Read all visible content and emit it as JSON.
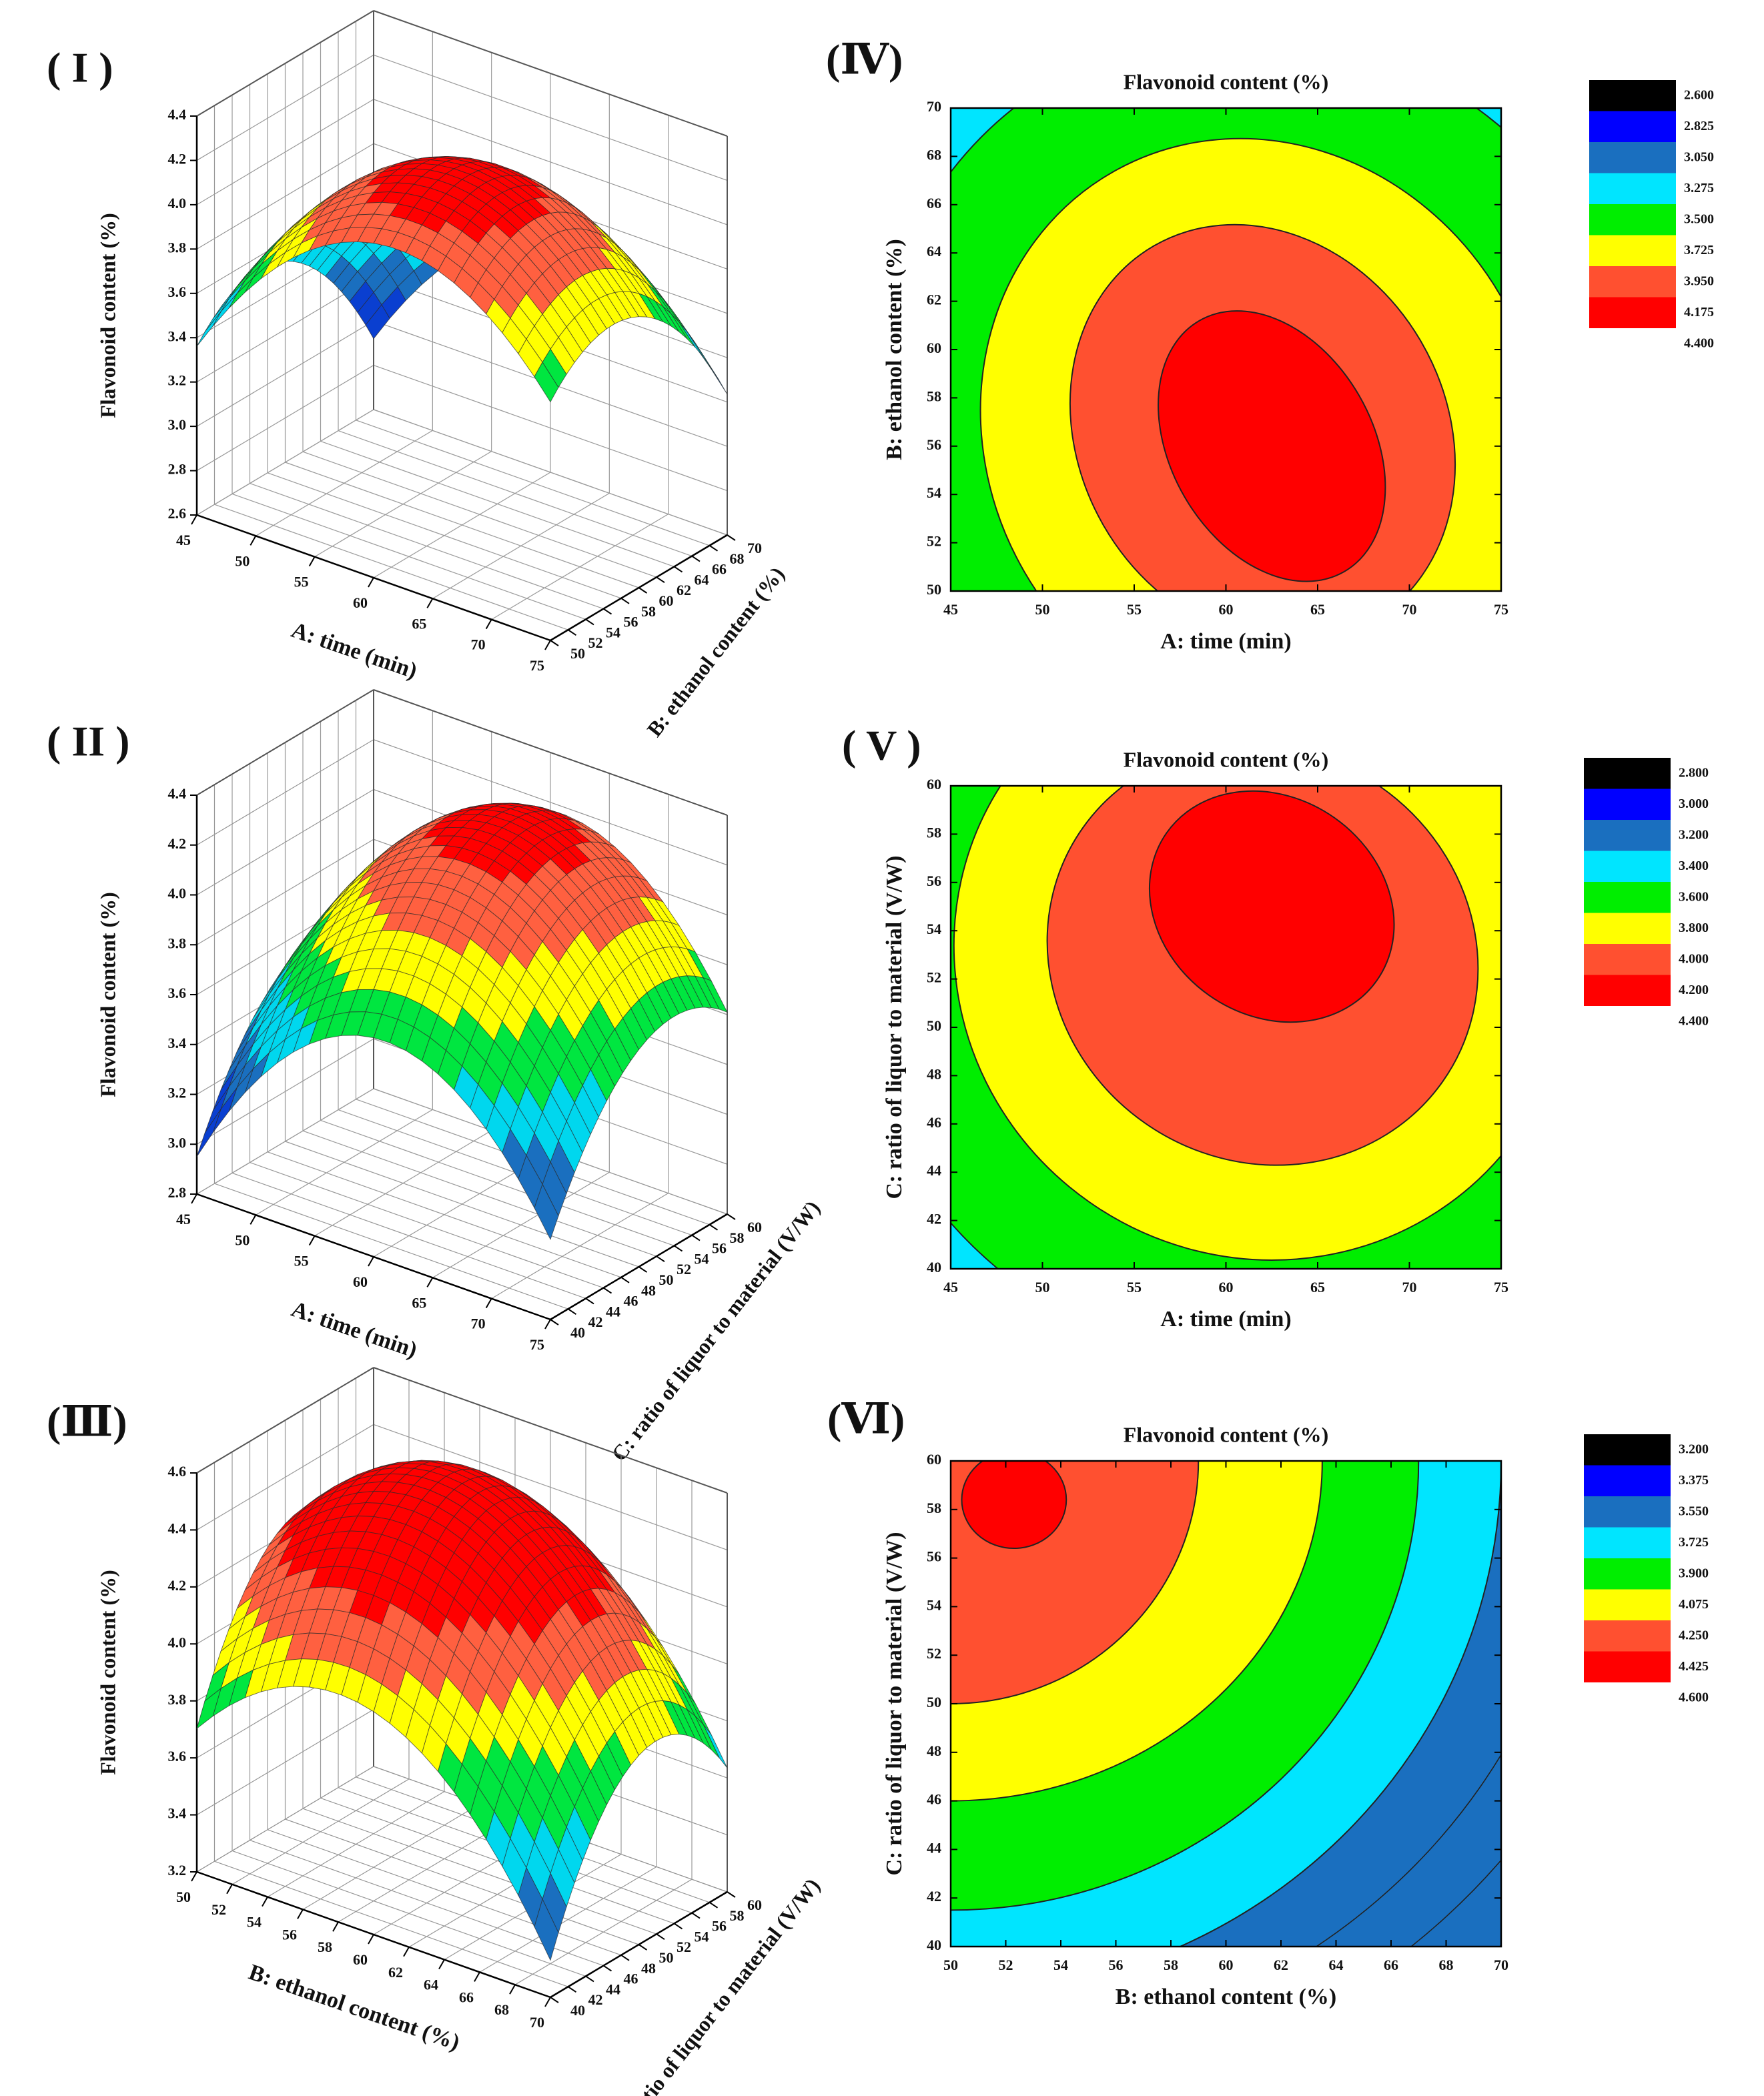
{
  "chart_data": [
    {
      "id": "I",
      "type": "surface3d",
      "panel_label": "( I )",
      "title": "",
      "xlabel": "A: time (min)",
      "ylabel": "B: ethanol content (%)",
      "zlabel": "Flavonoid content (%)",
      "xticks": [
        "45",
        "50",
        "55",
        "60",
        "65",
        "70",
        "75"
      ],
      "yticks": [
        "50",
        "52",
        "54",
        "56",
        "58",
        "60",
        "62",
        "64",
        "66",
        "68",
        "70"
      ],
      "zticks": [
        "2.6",
        "2.8",
        "3.0",
        "3.2",
        "3.4",
        "3.6",
        "3.8",
        "4.0",
        "4.2",
        "4.4"
      ],
      "xlim": [
        45,
        75
      ],
      "ylim": [
        50,
        70
      ],
      "zlim": [
        2.6,
        4.4
      ],
      "surface": {
        "x0": 62,
        "y0": 57,
        "max": 4.3,
        "corner_min": 2.92
      },
      "levels": [
        3.2,
        3.4,
        3.6,
        3.8,
        4.0,
        4.2
      ],
      "colors": [
        "#0a3fd0",
        "#1a6fbf",
        "#00d7ee",
        "#00e640",
        "#ffff00",
        "#ff6040",
        "#ff0000"
      ]
    },
    {
      "id": "IV",
      "type": "contour",
      "panel_label": "(Ⅳ)",
      "title": "Flavonoid content (%)",
      "xlabel": "A: time (min)",
      "ylabel": "B: ethanol content (%)",
      "xticks": [
        "45",
        "50",
        "55",
        "60",
        "65",
        "70",
        "75"
      ],
      "yticks": [
        "50",
        "52",
        "54",
        "56",
        "58",
        "60",
        "62",
        "64",
        "66",
        "68",
        "70"
      ],
      "xlim": [
        45,
        75
      ],
      "ylim": [
        50,
        70
      ],
      "contours": [
        {
          "level": "3.275",
          "cx": 62,
          "cy": 56.5,
          "rx": 26,
          "ry": 21,
          "rot": -30
        },
        {
          "level": "3.500",
          "cx": 62,
          "cy": 56.5,
          "rx": 21,
          "ry": 17,
          "rot": -30
        },
        {
          "level": "3.725",
          "cx": 62,
          "cy": 56.5,
          "rx": 15,
          "ry": 12.5,
          "rot": -30
        },
        {
          "level": "3.950",
          "cx": 62,
          "cy": 56.5,
          "rx": 10,
          "ry": 9,
          "rot": -30
        },
        {
          "level": "4.175",
          "cx": 62.5,
          "cy": 56,
          "rx": 5.5,
          "ry": 6,
          "rot": -30
        }
      ],
      "legend": {
        "levels": [
          "2.600",
          "2.825",
          "3.050",
          "3.275",
          "3.500",
          "3.725",
          "3.950",
          "4.175",
          "4.400"
        ],
        "colors": [
          "#000000",
          "#0000ff",
          "#1a6fbf",
          "#00e5ff",
          "#00ee00",
          "#ffff00",
          "#ff5030",
          "#ff0000"
        ]
      },
      "background_color": "#00e5ff"
    },
    {
      "id": "II",
      "type": "surface3d",
      "panel_label": "( II )",
      "title": "",
      "xlabel": "A: time (min)",
      "ylabel": "C: ratio of liquor to material (V/W)",
      "zlabel": "Flavonoid content (%)",
      "xticks": [
        "45",
        "50",
        "55",
        "60",
        "65",
        "70",
        "75"
      ],
      "yticks": [
        "40",
        "42",
        "44",
        "46",
        "48",
        "50",
        "52",
        "54",
        "56",
        "58",
        "60"
      ],
      "zticks": [
        "2.8",
        "3.0",
        "3.2",
        "3.4",
        "3.6",
        "3.8",
        "4.0",
        "4.2",
        "4.4"
      ],
      "xlim": [
        45,
        75
      ],
      "ylim": [
        40,
        60
      ],
      "zlim": [
        2.8,
        4.4
      ],
      "surface": {
        "x0": 61,
        "y0": 54,
        "max": 4.28,
        "corner_min": 2.95
      },
      "levels": [
        3.2,
        3.4,
        3.6,
        3.8,
        4.0,
        4.2
      ],
      "colors": [
        "#0a3fd0",
        "#1a6fbf",
        "#00d7ee",
        "#00e640",
        "#ffff00",
        "#ff6040",
        "#ff0000"
      ]
    },
    {
      "id": "V",
      "type": "contour",
      "panel_label": "( V )",
      "title": "Flavonoid content (%)",
      "xlabel": "A: time (min)",
      "ylabel": "C: ratio of liquor to material (V/W)",
      "xticks": [
        "45",
        "50",
        "55",
        "60",
        "65",
        "70",
        "75"
      ],
      "yticks": [
        "40",
        "42",
        "44",
        "46",
        "48",
        "50",
        "52",
        "54",
        "56",
        "58",
        "60"
      ],
      "xlim": [
        45,
        75
      ],
      "ylim": [
        40,
        60
      ],
      "contours": [
        {
          "level": "3.400",
          "cx": 62,
          "cy": 53,
          "rx": 28,
          "ry": 22,
          "rot": 35
        },
        {
          "level": "3.600",
          "cx": 62,
          "cy": 53,
          "rx": 23,
          "ry": 17,
          "rot": 35
        },
        {
          "level": "3.800",
          "cx": 62,
          "cy": 53,
          "rx": 17,
          "ry": 12.5,
          "rot": 35
        },
        {
          "level": "4.000",
          "cx": 62,
          "cy": 53,
          "rx": 12,
          "ry": 8.5,
          "rot": 35
        },
        {
          "level": "4.200",
          "cx": 62.5,
          "cy": 55,
          "rx": 7,
          "ry": 4.5,
          "rot": 35
        }
      ],
      "legend": {
        "levels": [
          "2.800",
          "3.000",
          "3.200",
          "3.400",
          "3.600",
          "3.800",
          "4.000",
          "4.200",
          "4.400"
        ],
        "colors": [
          "#000000",
          "#0000ff",
          "#1a6fbf",
          "#00e5ff",
          "#00ee00",
          "#ffff00",
          "#ff5030",
          "#ff0000"
        ]
      },
      "background_color": "#00e5ff"
    },
    {
      "id": "III",
      "type": "surface3d",
      "panel_label": "(Ⅲ)",
      "title": "",
      "xlabel": "B: ethanol content (%)",
      "ylabel": "C: ratio of liquor to material (V/W)",
      "zlabel": "Flavonoid content (%)",
      "xticks": [
        "50",
        "52",
        "54",
        "56",
        "58",
        "60",
        "62",
        "64",
        "66",
        "68",
        "70"
      ],
      "yticks": [
        "40",
        "42",
        "44",
        "46",
        "48",
        "50",
        "52",
        "54",
        "56",
        "58",
        "60"
      ],
      "zticks": [
        "3.2",
        "3.4",
        "3.6",
        "3.8",
        "4.0",
        "4.2",
        "4.4",
        "4.6"
      ],
      "xlim": [
        50,
        70
      ],
      "ylim": [
        40,
        60
      ],
      "zlim": [
        3.2,
        4.6
      ],
      "surface": {
        "x0": 58,
        "y0": 52,
        "max": 4.55,
        "corner_min": 3.33
      },
      "levels": [
        3.375,
        3.55,
        3.725,
        3.9,
        4.075,
        4.25,
        4.425
      ],
      "colors": [
        "#0a3fd0",
        "#1a6fbf",
        "#00d7ee",
        "#00e640",
        "#ffff00",
        "#ff6040",
        "#ff0000",
        "#ff0000"
      ]
    },
    {
      "id": "VI",
      "type": "contour",
      "panel_label": "(Ⅵ)",
      "title": "Flavonoid content (%)",
      "xlabel": "B: ethanol content (%)",
      "ylabel": "C: ratio of liquor to material (V/W)",
      "xticks": [
        "50",
        "52",
        "54",
        "56",
        "58",
        "60",
        "62",
        "64",
        "66",
        "68",
        "70"
      ],
      "yticks": [
        "40",
        "42",
        "44",
        "46",
        "48",
        "50",
        "52",
        "54",
        "56",
        "58",
        "60"
      ],
      "xlim": [
        50,
        70
      ],
      "ylim": [
        40,
        60
      ],
      "contours": [
        {
          "level": "3.725",
          "cx": 50,
          "cy": 60,
          "rx": 20,
          "ry": 22,
          "rot": 0
        },
        {
          "level": "3.900",
          "cx": 50,
          "cy": 60,
          "rx": 17,
          "ry": 18.5,
          "rot": 0
        },
        {
          "level": "4.075",
          "cx": 50,
          "cy": 60,
          "rx": 13.5,
          "ry": 14,
          "rot": 0
        },
        {
          "level": "4.250",
          "cx": 50,
          "cy": 60,
          "rx": 9,
          "ry": 10,
          "rot": 0
        },
        {
          "level": "4.425",
          "cx": 52.3,
          "cy": 58.4,
          "rx": 1.9,
          "ry": 2.0,
          "rot": 0
        }
      ],
      "legend": {
        "levels": [
          "3.200",
          "3.375",
          "3.550",
          "3.725",
          "3.900",
          "4.075",
          "4.250",
          "4.425",
          "4.600"
        ],
        "colors": [
          "#000000",
          "#0000ff",
          "#1a6fbf",
          "#00e5ff",
          "#00ee00",
          "#ffff00",
          "#ff5030",
          "#ff0000"
        ]
      },
      "background_color": "#1a6fbf"
    }
  ]
}
